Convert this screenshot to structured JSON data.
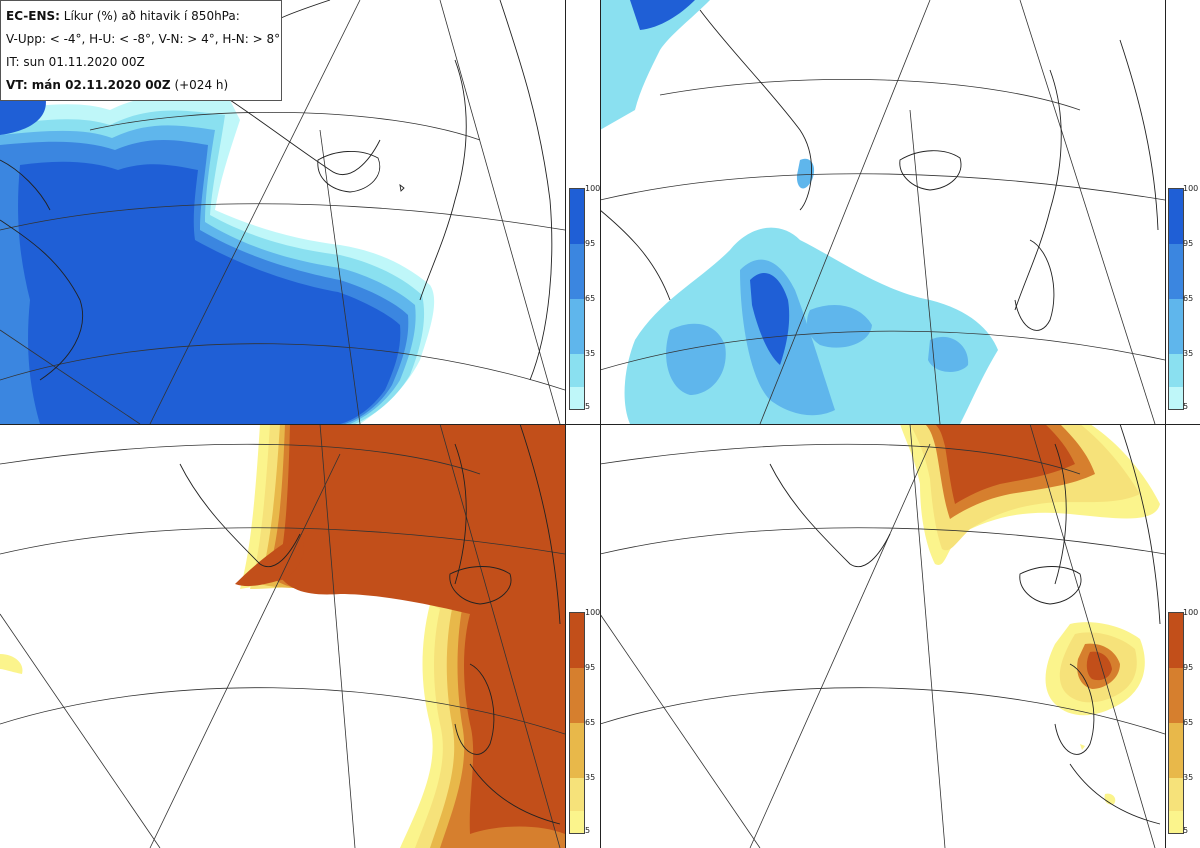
{
  "header": {
    "model": "EC-ENS:",
    "description": "Líkur (%) að hitavik í 850hPa:",
    "thresholds": "V-Upp: < -4°, H-U: < -8°, V-N: > 4°, H-N: > 8°",
    "init_time": "IT: sun 01.11.2020 00Z",
    "valid_label": "VT: mán 02.11.2020 00Z",
    "valid_lead": "(+024 h)"
  },
  "colorbars": {
    "cold": {
      "ticks": [
        "100",
        "95",
        "65",
        "35",
        "5"
      ],
      "colors": [
        "#1f5fd6",
        "#3b86e0",
        "#5fb6ec",
        "#8ae0f0",
        "#bff7f9"
      ]
    },
    "warm": {
      "ticks": [
        "100",
        "95",
        "65",
        "35",
        "5"
      ],
      "colors": [
        "#c24f1a",
        "#d67f2e",
        "#e8b84a",
        "#f6e27a",
        "#fbf48c"
      ]
    }
  },
  "panels": [
    {
      "id": "top-left",
      "variable": "cold-4"
    },
    {
      "id": "top-right",
      "variable": "cold-8"
    },
    {
      "id": "bottom-left",
      "variable": "warm-4"
    },
    {
      "id": "bottom-right",
      "variable": "warm-8"
    }
  ]
}
